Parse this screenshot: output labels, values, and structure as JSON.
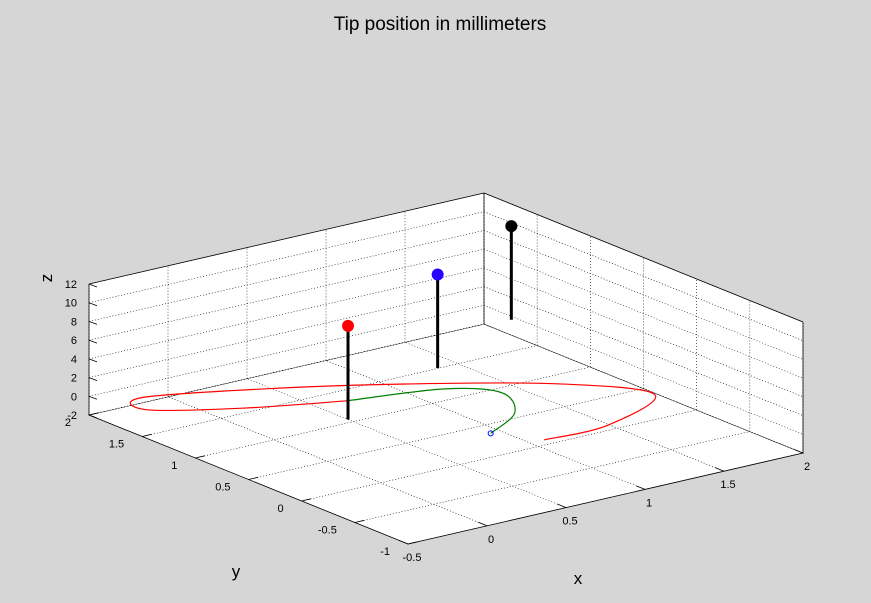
{
  "chart_data": {
    "type": "line3d",
    "title": "Tip position in millimeters",
    "xlabel": "x",
    "ylabel": "y",
    "zlabel": "z",
    "xlim": [
      -0.5,
      2
    ],
    "ylim": [
      -1,
      2
    ],
    "zlim": [
      -2,
      12
    ],
    "x_ticks": [
      "-0.5",
      "0",
      "0.5",
      "1",
      "1.5",
      "2"
    ],
    "y_ticks": [
      "-1",
      "-0.5",
      "0",
      "0.5",
      "1",
      "1.5",
      "2"
    ],
    "z_ticks": [
      "-2",
      "0",
      "2",
      "4",
      "6",
      "8",
      "10",
      "12"
    ],
    "grid": true,
    "series": [
      {
        "color": "#ff0000",
        "points": [
          [
            0.9,
            -0.2,
            0
          ],
          [
            1.3,
            -0.2,
            0
          ],
          [
            1.8,
            0.1,
            0
          ],
          [
            1.5,
            0.6,
            0
          ],
          [
            0.9,
            1.1,
            0
          ],
          [
            0.3,
            1.5,
            0
          ],
          [
            -0.3,
            1.8,
            0
          ],
          [
            -0.4,
            1.6,
            0
          ],
          [
            0.0,
            1.3,
            0
          ],
          [
            0.5,
            1.05,
            0
          ]
        ]
      },
      {
        "color": "#008000",
        "points": [
          [
            0.5,
            1.05,
            0
          ],
          [
            1.0,
            0.9,
            0
          ],
          [
            1.2,
            0.65,
            0
          ],
          [
            1.05,
            0.3,
            0
          ],
          [
            0.75,
            0.08,
            0
          ]
        ]
      }
    ],
    "markers": [
      {
        "x": 0.75,
        "y": 0.08,
        "z": 0,
        "color": "#0000ff",
        "style": "open-circle"
      }
    ],
    "stems": [
      {
        "x": 0.5,
        "y": 1.05,
        "z_base": -2,
        "z_top": 8,
        "color": "#ff0000"
      },
      {
        "x": 1.0,
        "y": 0.95,
        "z_base": 2,
        "z_top": 12,
        "color": "#2a00ff"
      },
      {
        "x": 1.5,
        "y": 1.0,
        "z_base": 5,
        "z_top": 15,
        "color": "#000000"
      }
    ]
  }
}
